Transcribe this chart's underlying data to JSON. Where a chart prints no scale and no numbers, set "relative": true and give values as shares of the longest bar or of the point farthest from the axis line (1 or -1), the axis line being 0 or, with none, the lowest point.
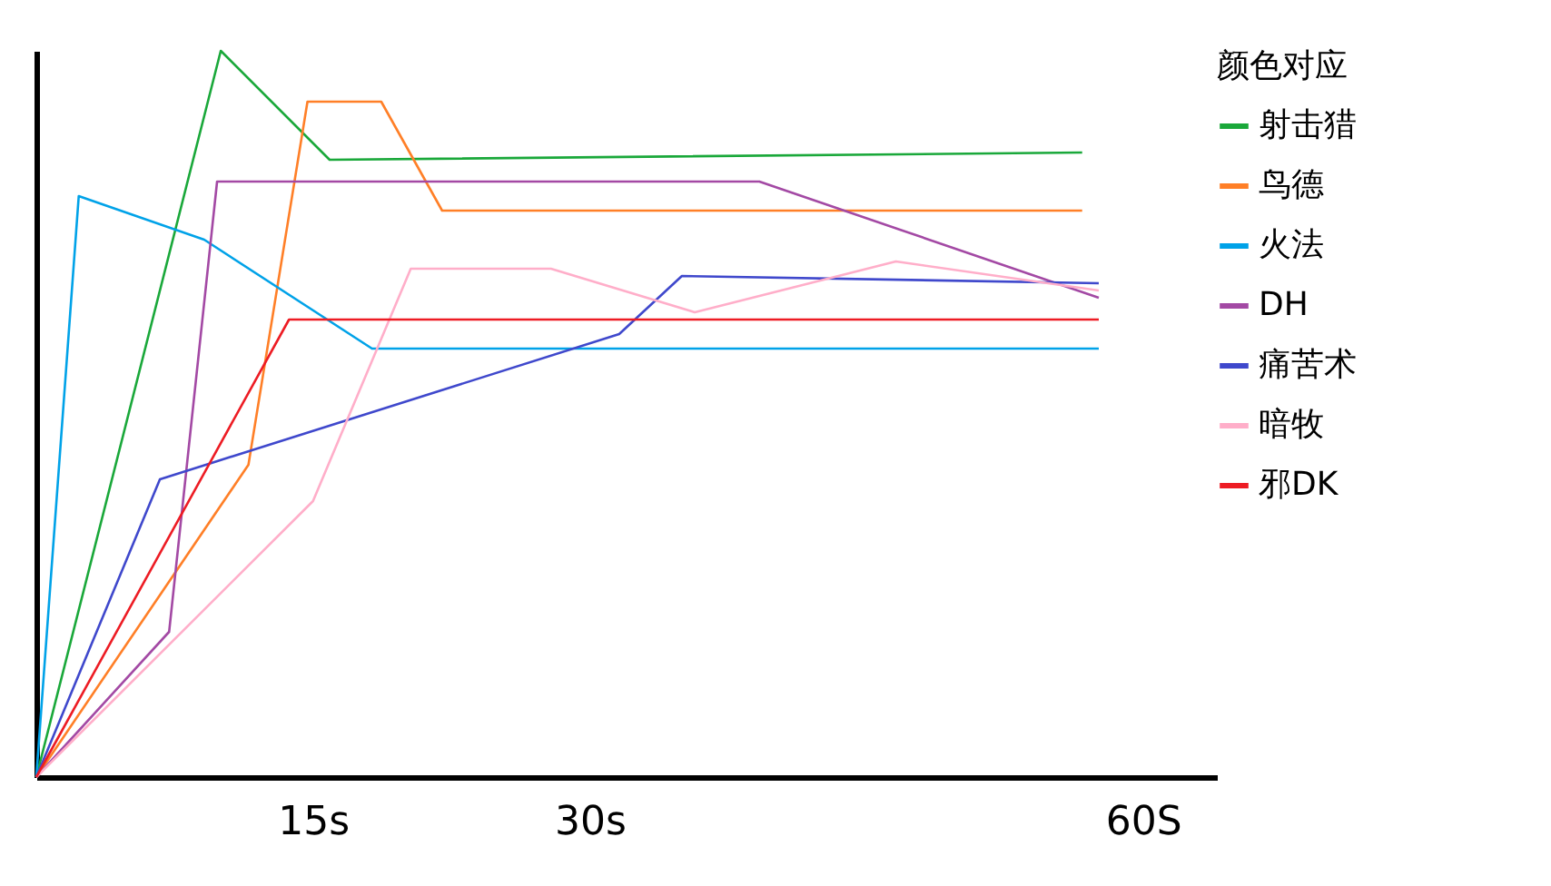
{
  "chart_data": {
    "type": "line",
    "relative": true,
    "legend_title": "颜色对应",
    "legend": "right",
    "tick_labels": "x",
    "grid": false,
    "marker": "none",
    "line_style": "solid",
    "xlim": [
      0,
      64
    ],
    "xticks": [
      {
        "value": 15,
        "label": "15s"
      },
      {
        "value": 30,
        "label": "30s"
      },
      {
        "value": 60,
        "label": "60S"
      }
    ],
    "series": [
      {
        "name": "射击猎",
        "color": "#1aa83a",
        "x": [
          0,
          10,
          15.9,
          56.7
        ],
        "values": [
          0,
          1,
          0.85,
          0.86
        ]
      },
      {
        "name": "鸟德",
        "color": "#ff7f27",
        "x": [
          0,
          11.5,
          14.7,
          18.7,
          22,
          56.7
        ],
        "values": [
          0,
          0.43,
          0.93,
          0.93,
          0.78,
          0.78
        ]
      },
      {
        "name": "火法",
        "color": "#00a2e8",
        "x": [
          0,
          2.3,
          9.1,
          18.2,
          57.6
        ],
        "values": [
          0,
          0.8,
          0.74,
          0.59,
          0.59
        ]
      },
      {
        "name": "DH",
        "color": "#a349a4",
        "x": [
          0,
          7.2,
          9.8,
          39.2,
          57.6
        ],
        "values": [
          0,
          0.2,
          0.82,
          0.82,
          0.66
        ]
      },
      {
        "name": "痛苦术",
        "color": "#3f48cc",
        "x": [
          0,
          6.7,
          31.6,
          35,
          57.6
        ],
        "values": [
          0,
          0.41,
          0.61,
          0.69,
          0.68
        ]
      },
      {
        "name": "暗牧",
        "color": "#ffaec9",
        "x": [
          0,
          15,
          20.3,
          27.9,
          35.7,
          46.6,
          57.6
        ],
        "values": [
          0,
          0.38,
          0.7,
          0.7,
          0.64,
          0.71,
          0.67
        ]
      },
      {
        "name": "邪DK",
        "color": "#ed1c24",
        "x": [
          0,
          13.7,
          57.6
        ],
        "values": [
          0,
          0.63,
          0.63
        ]
      }
    ]
  }
}
